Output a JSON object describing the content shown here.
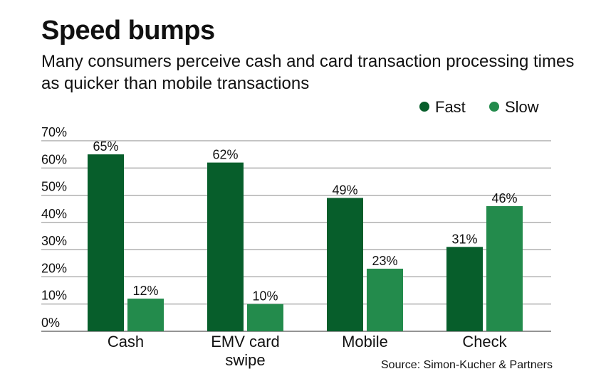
{
  "chart_data": {
    "type": "bar",
    "title": "Speed bumps",
    "subtitle": "Many consumers perceive cash and card transaction processing times as quicker than mobile transactions",
    "categories": [
      [
        "Cash"
      ],
      [
        "EMV card",
        "swipe"
      ],
      [
        "Mobile"
      ],
      [
        "Check"
      ]
    ],
    "series": [
      {
        "name": "Fast",
        "color": "#075e2b",
        "values": [
          65,
          62,
          49,
          31
        ],
        "labels": [
          "65%",
          "62%",
          "49%",
          "31%"
        ]
      },
      {
        "name": "Slow",
        "color": "#238b4c",
        "values": [
          12,
          10,
          23,
          46
        ],
        "labels": [
          "12%",
          "10%",
          "23%",
          "46%"
        ]
      }
    ],
    "ylim": [
      0,
      70
    ],
    "yticks": [
      0,
      10,
      20,
      30,
      40,
      50,
      60,
      70
    ],
    "ytick_labels": [
      "0%",
      "10%",
      "20%",
      "30%",
      "40%",
      "50%",
      "60%",
      "70%"
    ],
    "grid": true,
    "legend_position": "top-right",
    "source": "Source: Simon-Kucher & Partners"
  }
}
